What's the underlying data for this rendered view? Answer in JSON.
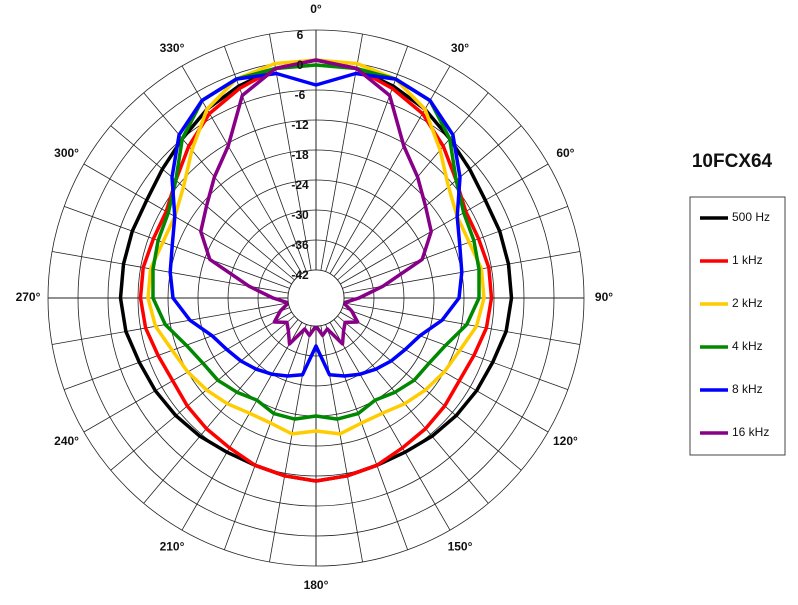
{
  "chart_data": {
    "type": "polar",
    "title": "10FCX64",
    "theta": [
      0,
      10,
      20,
      30,
      40,
      50,
      60,
      70,
      80,
      90,
      100,
      110,
      120,
      130,
      140,
      150,
      160,
      170,
      180,
      190,
      200,
      210,
      220,
      230,
      240,
      250,
      260,
      270,
      280,
      290,
      300,
      310,
      320,
      330,
      340,
      350
    ],
    "thetaticks": [
      {
        "value": 0,
        "label": "0°"
      },
      {
        "value": 30,
        "label": "30°"
      },
      {
        "value": 60,
        "label": "60°"
      },
      {
        "value": 90,
        "label": "90°"
      },
      {
        "value": 120,
        "label": "120°"
      },
      {
        "value": 150,
        "label": "150°"
      },
      {
        "value": 180,
        "label": "180°"
      },
      {
        "value": 210,
        "label": "210°"
      },
      {
        "value": 240,
        "label": "240°"
      },
      {
        "value": 270,
        "label": "270°"
      },
      {
        "value": 300,
        "label": "300°"
      },
      {
        "value": 330,
        "label": "330°"
      }
    ],
    "rlim": [
      -42,
      6
    ],
    "rticks": [
      6,
      0,
      -6,
      -12,
      -18,
      -24,
      -30,
      -36,
      -42
    ],
    "series": [
      {
        "name": "500 Hz",
        "color": "#000000",
        "values": [
          0,
          -1,
          -2.5,
          -4,
          -6,
          -7.5,
          -8.5,
          -8.5,
          -8.5,
          -8.5,
          -9,
          -10,
          -10.5,
          -11,
          -11.5,
          -12,
          -12,
          -11.5,
          -11,
          -11.5,
          -12,
          -12,
          -11.5,
          -11,
          -10.5,
          -10,
          -9,
          -8.5,
          -8.5,
          -8.5,
          -8.5,
          -7.5,
          -6,
          -4,
          -2.5,
          -1
        ]
      },
      {
        "name": "1 kHz",
        "color": "#ff0000",
        "values": [
          0,
          -1,
          -3,
          -5,
          -8,
          -11,
          -13,
          -13,
          -12.5,
          -12.5,
          -13,
          -14,
          -14.5,
          -14,
          -13.5,
          -13,
          -12,
          -11.5,
          -11,
          -11.5,
          -12,
          -13,
          -13.5,
          -14,
          -14.5,
          -14,
          -13,
          -12.5,
          -12.5,
          -13,
          -13,
          -11,
          -8,
          -5,
          -3,
          -1
        ]
      },
      {
        "name": "2 kHz",
        "color": "#ffcc00",
        "values": [
          0,
          0,
          -1,
          -4,
          -9,
          -13,
          -15,
          -15,
          -14,
          -14,
          -15,
          -17,
          -18,
          -19,
          -20,
          -21,
          -21,
          -20,
          -21,
          -20,
          -21,
          -21,
          -20,
          -19,
          -18,
          -17,
          -15,
          -14,
          -14,
          -15,
          -15,
          -13,
          -9,
          -4,
          -1,
          0
        ]
      },
      {
        "name": "4 kHz",
        "color": "#008800",
        "values": [
          -1,
          -1,
          -1,
          -2,
          -6,
          -11,
          -13.5,
          -14,
          -14.5,
          -15,
          -17,
          -20,
          -21.5,
          -22,
          -23,
          -24,
          -23,
          -23,
          -24,
          -23,
          -23,
          -24,
          -23,
          -22,
          -21.5,
          -20,
          -17,
          -15,
          -14.5,
          -14,
          -13.5,
          -11,
          -6,
          -2,
          -1,
          -1
        ]
      },
      {
        "name": "8 kHz",
        "color": "#0000ff",
        "values": [
          -5,
          -2,
          -1,
          -2,
          -5,
          -10,
          -15,
          -17,
          -18,
          -19,
          -22,
          -25.5,
          -27,
          -28,
          -29,
          -30,
          -31,
          -32,
          -38,
          -32,
          -31,
          -30,
          -29,
          -28,
          -27,
          -25.5,
          -22,
          -19,
          -18,
          -17,
          -15,
          -10,
          -5,
          -2,
          -1,
          -2
        ]
      },
      {
        "name": "16 kHz",
        "color": "#880088",
        "values": [
          0,
          -1,
          -4.5,
          -12.5,
          -16,
          -19,
          -21,
          -25,
          -34,
          -39,
          -42,
          -40,
          -38,
          -40,
          -39,
          -37,
          -41,
          -40,
          -42,
          -40,
          -41,
          -37,
          -39,
          -40,
          -38,
          -40,
          -42,
          -39,
          -34,
          -25,
          -21,
          -19,
          -16,
          -12.5,
          -4.5,
          -1
        ]
      }
    ]
  }
}
